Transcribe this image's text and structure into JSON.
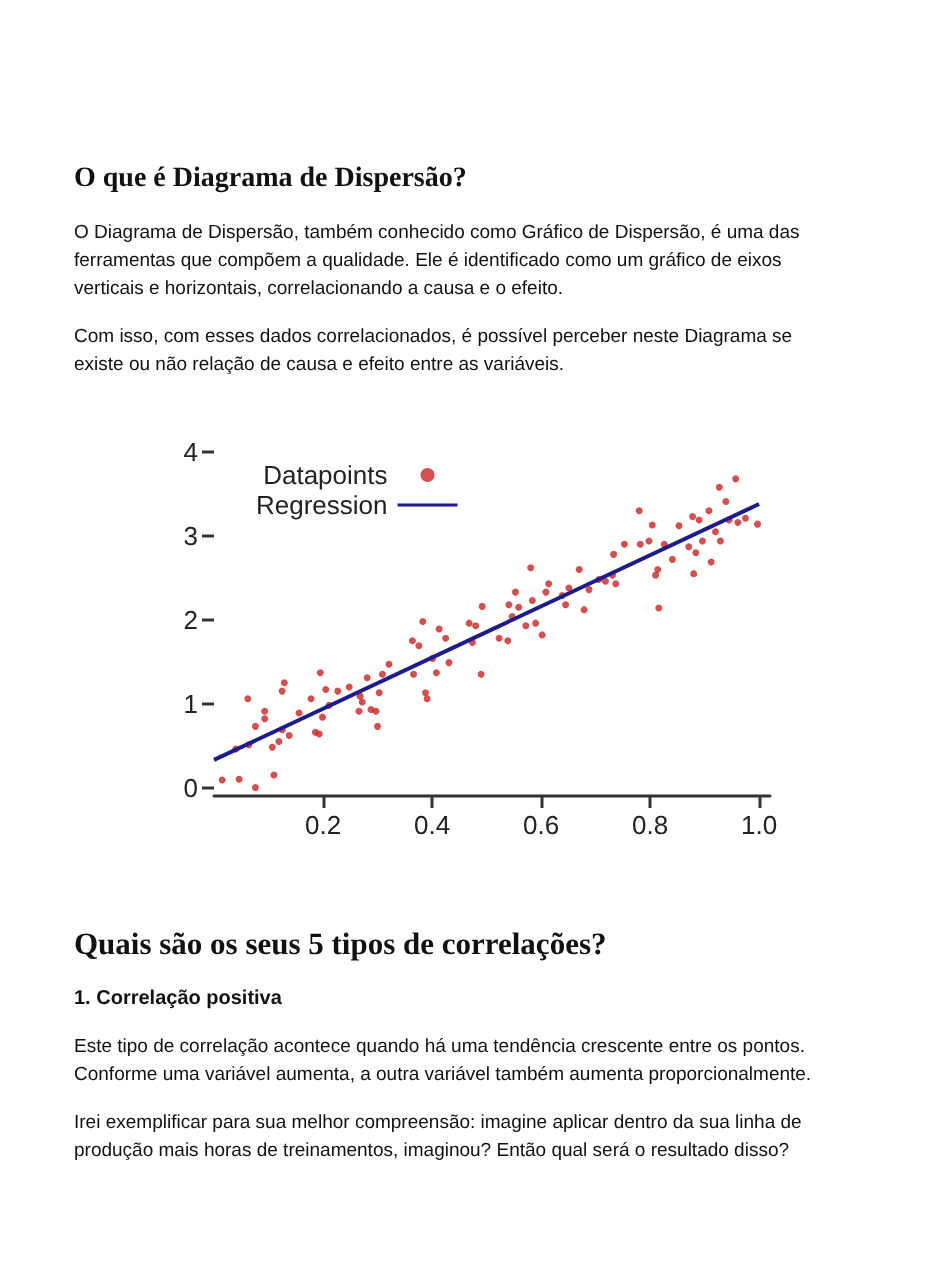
{
  "chart_data": {
    "type": "scatter",
    "title": "O que é Diagrama de Dispersão?",
    "annotations": [
      "O Diagrama de Dispersão, também conhecido como Gráfico de Dispersão, é uma das ferramentas que compõem a qualidade. Ele é identificado como um gráfico de eixos verticais e horizontais, correlacionando a causa e o efeito.",
      "Com isso, com esses dados correlacionados, é possível perceber neste Diagrama se existe ou não relação de causa e efeito entre as variáveis.",
      "Quais são os seus 5 tipos de correlações?",
      "1. Correlação positiva",
      "Este tipo de correlação acontece quando há uma tendência crescente entre os pontos. Conforme uma variável aumenta, a outra variável também aumenta proporcionalmente.",
      "Irei exemplificar para sua melhor compreensão: imagine aplicar dentro da sua linha de produção mais horas de treinamentos, imaginou? Então qual será o resultado disso?"
    ],
    "xlim": [
      0,
      1.02
    ],
    "xticks": [
      0.2,
      0.4,
      0.6,
      0.8,
      {
        "value": 1,
        "label": "1.0"
      }
    ],
    "ylim": [
      -0.1,
      4
    ],
    "yticks": [
      0,
      1,
      2,
      3,
      4
    ],
    "grid": false,
    "legend": "top left",
    "series": [
      {
        "name": "Datapoints",
        "type": "scatter",
        "marker": "circle",
        "color": "#cc2222",
        "x": [
          0.015,
          0.046,
          0.076,
          0.11,
          0.04,
          0.064,
          0.062,
          0.076,
          0.093,
          0.093,
          0.107,
          0.119,
          0.125,
          0.129,
          0.125,
          0.138,
          0.156,
          0.178,
          0.186,
          0.193,
          0.195,
          0.199,
          0.205,
          0.211,
          0.227,
          0.248,
          0.266,
          0.268,
          0.272,
          0.281,
          0.288,
          0.3,
          0.297,
          0.303,
          0.309,
          0.321,
          0.364,
          0.366,
          0.376,
          0.383,
          0.388,
          0.391,
          0.401,
          0.408,
          0.413,
          0.425,
          0.431,
          0.468,
          0.474,
          0.48,
          0.49,
          0.492,
          0.523,
          0.539,
          0.541,
          0.547,
          0.553,
          0.559,
          0.572,
          0.581,
          0.584,
          0.59,
          0.602,
          0.609,
          0.614,
          0.639,
          0.645,
          0.651,
          0.67,
          0.679,
          0.688,
          0.706,
          0.718,
          0.731,
          0.733,
          0.737,
          0.753,
          0.78,
          0.782,
          0.798,
          0.804,
          0.81,
          0.814,
          0.816,
          0.826,
          0.841,
          0.853,
          0.871,
          0.878,
          0.88,
          0.884,
          0.89,
          0.896,
          0.908,
          0.912,
          0.92,
          0.927,
          0.929,
          0.939,
          0.945,
          0.957,
          0.961,
          0.975,
          0.997
        ],
        "values": [
          0.09,
          0.1,
          0.0,
          0.15,
          0.46,
          0.51,
          1.06,
          0.73,
          0.91,
          0.82,
          0.48,
          0.55,
          0.69,
          1.25,
          1.15,
          0.62,
          0.89,
          1.06,
          0.66,
          0.64,
          1.37,
          0.84,
          1.17,
          0.98,
          1.15,
          1.2,
          0.91,
          1.09,
          1.02,
          1.31,
          0.93,
          0.73,
          0.91,
          1.13,
          1.35,
          1.47,
          1.75,
          1.35,
          1.69,
          1.98,
          1.13,
          1.06,
          1.54,
          1.37,
          1.89,
          1.78,
          1.49,
          1.96,
          1.73,
          1.93,
          1.35,
          2.16,
          1.78,
          1.75,
          2.18,
          2.04,
          2.33,
          2.15,
          1.93,
          2.62,
          2.23,
          1.96,
          1.82,
          2.33,
          2.43,
          2.29,
          2.18,
          2.38,
          2.6,
          2.12,
          2.36,
          2.48,
          2.46,
          2.53,
          2.78,
          2.43,
          2.9,
          3.3,
          2.9,
          2.94,
          3.13,
          2.53,
          2.6,
          2.14,
          2.9,
          2.72,
          3.12,
          2.87,
          3.23,
          2.55,
          2.8,
          3.19,
          2.94,
          3.3,
          2.69,
          3.05,
          3.58,
          2.94,
          3.41,
          3.19,
          3.68,
          3.16,
          3.21,
          3.14
        ]
      },
      {
        "name": "Regression",
        "type": "line",
        "marker": "none",
        "line_style": "solid",
        "color": "#1c1c8c",
        "x": [
          0,
          1
        ],
        "values": [
          0.33,
          3.38
        ]
      }
    ]
  }
}
